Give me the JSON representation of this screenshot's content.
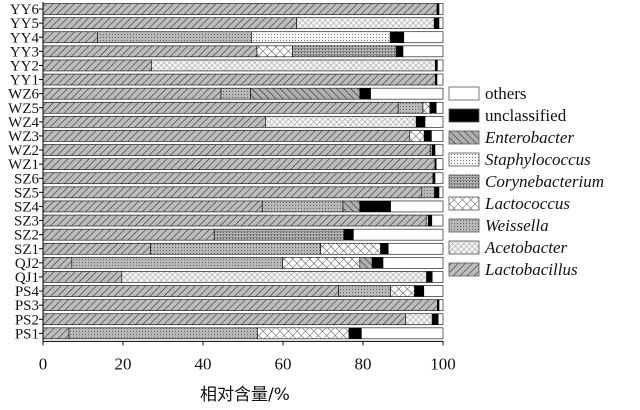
{
  "chart_data": {
    "type": "bar",
    "orientation": "horizontal",
    "stacked": true,
    "title": "",
    "xlabel": "相对含量/%",
    "ylabel": "",
    "xlim": [
      0,
      100
    ],
    "xticks": [
      "0",
      "20",
      "40",
      "60",
      "80",
      "100"
    ],
    "legend_position": "right",
    "categories": [
      "YY6",
      "YY5",
      "YY4",
      "YY3",
      "YY2",
      "YY1",
      "WZ6",
      "WZ5",
      "WZ4",
      "WZ3",
      "WZ2",
      "WZ1",
      "SZ6",
      "SZ5",
      "SZ4",
      "SZ3",
      "SZ2",
      "SZ1",
      "QJ2",
      "QJ1",
      "PS4",
      "PS3",
      "PS2",
      "PS1"
    ],
    "series": [
      {
        "name": "Lactobacillus",
        "italic": true,
        "pattern": "diag-right",
        "values": [
          98.5,
          63.4,
          13.6,
          53.5,
          27.1,
          98.1,
          44.5,
          88.8,
          55.6,
          91.7,
          96.8,
          98.0,
          97.5,
          94.7,
          54.8,
          95.8,
          42.8,
          26.9,
          7.2,
          19.7,
          73.9,
          98.6,
          90.6,
          6.5
        ]
      },
      {
        "name": "Acetobacter",
        "italic": true,
        "pattern": "fine-cross",
        "values": [
          0,
          34.4,
          0,
          0,
          71.0,
          0,
          0,
          0,
          37.7,
          0,
          0,
          0,
          0,
          0,
          0,
          0,
          0,
          0,
          0,
          76.2,
          0,
          0,
          6.7,
          0
        ]
      },
      {
        "name": "Weissella",
        "italic": true,
        "pattern": "gray-dots",
        "values": [
          0,
          0,
          38.5,
          0,
          0,
          0,
          7.4,
          6.2,
          0,
          0,
          0.5,
          0,
          0,
          3.2,
          20.2,
          0,
          0,
          42.5,
          52.7,
          0,
          13.0,
          0,
          0,
          47.1
        ]
      },
      {
        "name": "Lactococcus",
        "italic": true,
        "pattern": "cross",
        "values": [
          0,
          0,
          0,
          8.9,
          0,
          0,
          0,
          1.7,
          0,
          3.6,
          0,
          0,
          0,
          0,
          0,
          0.5,
          0,
          15.0,
          19.3,
          0,
          6.0,
          0,
          0,
          22.9
        ]
      },
      {
        "name": "Corynebacterium",
        "italic": true,
        "pattern": "gray-grid",
        "values": [
          0,
          0,
          0,
          25.9,
          0,
          0,
          0,
          0,
          0,
          0,
          0,
          0,
          0,
          0,
          0,
          0,
          32.4,
          0,
          0,
          0,
          0,
          0,
          0,
          0
        ]
      },
      {
        "name": "Staphylococcus",
        "italic": true,
        "pattern": "light-dots",
        "values": [
          0,
          0,
          34.7,
          0,
          0,
          0,
          0,
          0,
          0,
          0,
          0,
          0,
          0,
          0,
          0,
          0,
          0,
          0,
          0,
          0,
          0,
          0,
          0,
          0
        ]
      },
      {
        "name": "Enterobacter",
        "italic": true,
        "pattern": "diag-left",
        "values": [
          0,
          0,
          0,
          0,
          0,
          0,
          27.3,
          0,
          0,
          0,
          0,
          0,
          0,
          0,
          4.2,
          0,
          0,
          0,
          3.1,
          0,
          0,
          0,
          0,
          0
        ]
      },
      {
        "name": "unclassified",
        "italic": false,
        "pattern": "solid-black",
        "values": [
          0.5,
          1.2,
          3.4,
          1.7,
          0.5,
          0.4,
          2.7,
          1.6,
          2.2,
          1.8,
          0.7,
          0.3,
          0.5,
          1.1,
          7.7,
          0.9,
          2.4,
          1.9,
          2.7,
          1.4,
          2.3,
          0.4,
          1.5,
          3.1
        ]
      },
      {
        "name": "others",
        "italic": false,
        "pattern": "white",
        "values": [
          1.0,
          1.0,
          9.8,
          10.0,
          1.4,
          1.5,
          18.1,
          1.7,
          4.5,
          2.9,
          2.0,
          1.7,
          2.0,
          1.0,
          13.1,
          2.8,
          22.4,
          13.7,
          15.0,
          2.7,
          4.8,
          1.0,
          1.2,
          20.4
        ]
      }
    ],
    "legend_order": [
      "others",
      "unclassified",
      "Enterobacter",
      "Staphylococcus",
      "Corynebacterium",
      "Lactococcus",
      "Weissella",
      "Acetobacter",
      "Lactobacillus"
    ]
  }
}
